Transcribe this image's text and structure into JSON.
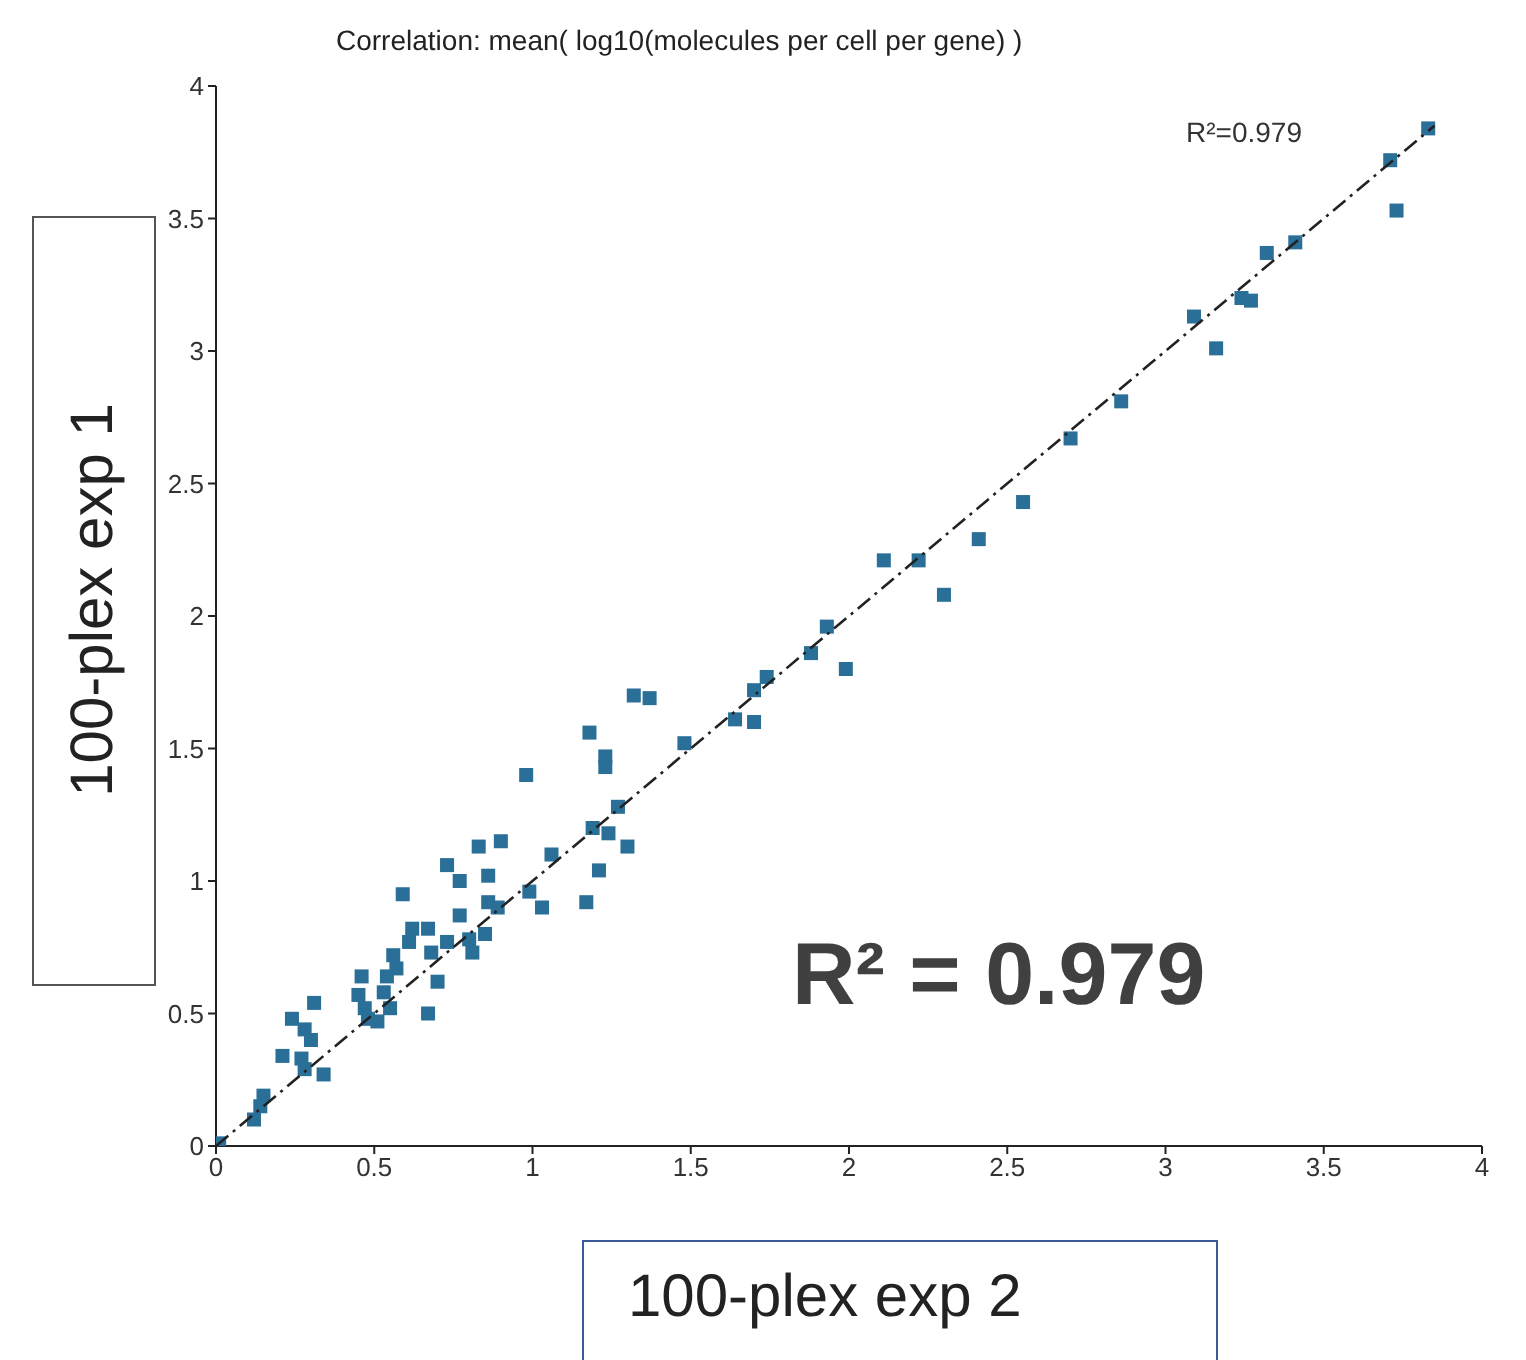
{
  "chart_data": {
    "type": "scatter",
    "title": "Correlation: mean( log10(molecules per cell per gene) )",
    "xlabel": "100-plex exp 2",
    "ylabel": "100-plex exp 1",
    "annotations": [
      "R²=0.979",
      "R² = 0.979"
    ],
    "xlim": [
      0,
      4
    ],
    "xticks": [
      0,
      0.5,
      1,
      1.5,
      2,
      2.5,
      3,
      3.5,
      4
    ],
    "ylim": [
      0,
      4
    ],
    "yticks": [
      0,
      0.5,
      1,
      1.5,
      2,
      2.5,
      3,
      3.5,
      4
    ],
    "marker": "square",
    "series": [
      {
        "color": "#2a6f97",
        "x": [
          3.83,
          3.71,
          3.73,
          3.41,
          3.32,
          3.24,
          3.27,
          3.09,
          3.16,
          2.86,
          2.7,
          2.55,
          2.41,
          2.3,
          2.11,
          2.22,
          1.93,
          1.88,
          1.99,
          1.74,
          1.7,
          1.64,
          1.7,
          1.48,
          1.32,
          1.37,
          1.18,
          1.23,
          1.23,
          0.98,
          1.27,
          1.19,
          1.24,
          1.3,
          1.21,
          1.17,
          1.06,
          1.03,
          0.99,
          0.9,
          0.83,
          0.73,
          0.86,
          0.77,
          0.86,
          0.89,
          0.77,
          0.85,
          0.8,
          0.81,
          0.73,
          0.67,
          0.68,
          0.7,
          0.59,
          0.62,
          0.61,
          0.56,
          0.57,
          0.54,
          0.53,
          0.55,
          0.46,
          0.45,
          0.47,
          0.51,
          0.48,
          0.67,
          0.31,
          0.24,
          0.28,
          0.3,
          0.21,
          0.27,
          0.28,
          0.34,
          0.15,
          0.14,
          0.12,
          0.01
        ],
        "values": [
          3.84,
          3.72,
          3.53,
          3.41,
          3.37,
          3.2,
          3.19,
          3.13,
          3.01,
          2.81,
          2.67,
          2.43,
          2.29,
          2.08,
          2.21,
          2.21,
          1.96,
          1.86,
          1.8,
          1.77,
          1.72,
          1.61,
          1.6,
          1.52,
          1.7,
          1.69,
          1.56,
          1.47,
          1.43,
          1.4,
          1.28,
          1.2,
          1.18,
          1.13,
          1.04,
          0.92,
          1.1,
          0.9,
          0.96,
          1.15,
          1.13,
          1.06,
          1.02,
          1.0,
          0.92,
          0.9,
          0.87,
          0.8,
          0.78,
          0.73,
          0.77,
          0.82,
          0.73,
          0.62,
          0.95,
          0.82,
          0.77,
          0.72,
          0.67,
          0.64,
          0.58,
          0.52,
          0.64,
          0.57,
          0.52,
          0.47,
          0.48,
          0.5,
          0.54,
          0.48,
          0.44,
          0.4,
          0.34,
          0.33,
          0.29,
          0.27,
          0.19,
          0.15,
          0.1,
          0.01
        ]
      },
      {
        "type": "line",
        "color": "#222222",
        "line_style": "dashed",
        "marker": "none",
        "x": [
          0,
          3.85
        ],
        "values": [
          0,
          3.85
        ]
      }
    ]
  }
}
